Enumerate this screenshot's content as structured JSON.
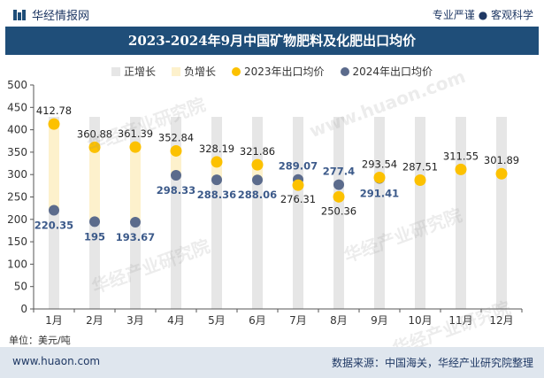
{
  "header": {
    "brand": "华经情报网",
    "tagline": "专业严谨 ● 客观科学"
  },
  "title": "2023-2024年9月中国矿物肥料及化肥出口均价",
  "legend": [
    {
      "label": "正增长",
      "color": "#e6e6e6"
    },
    {
      "label": "负增长",
      "color": "#fdf1cc"
    },
    {
      "label": "2023年出口均价",
      "color": "#fcc100"
    },
    {
      "label": "2024年出口均价",
      "color": "#5b6b8c"
    }
  ],
  "unit_label": "单位：美元/吨",
  "footer": {
    "site": "www.huaon.com",
    "source": "数据来源：中国海关，华经产业研究院整理"
  },
  "watermarks": [
    "华经产业研究院",
    "www.huaon.com"
  ],
  "colors": {
    "title_bg": "#1f4e79",
    "footer_bg": "#dfe6ee",
    "series_2023": "#fcc100",
    "series_2024": "#5b6b8c",
    "positive_bar": "#e6e6e6",
    "negative_bar": "#fdf1cc"
  },
  "chart_data": {
    "type": "scatter",
    "title": "2023-2024年9月中国矿物肥料及化肥出口均价",
    "categories": [
      "1月",
      "2月",
      "3月",
      "4月",
      "5月",
      "6月",
      "7月",
      "8月",
      "9月",
      "10月",
      "11月",
      "12月"
    ],
    "series": [
      {
        "name": "2023年出口均价",
        "values": [
          412.78,
          360.88,
          361.39,
          352.84,
          328.19,
          321.86,
          276.31,
          250.36,
          293.54,
          287.51,
          311.55,
          301.89
        ],
        "labels": [
          "412.78",
          "360.88",
          "361.39",
          "352.84",
          "328.19",
          "321.86",
          "276.31",
          "250.36",
          "293.54",
          "287.51",
          "311.55",
          "301.89"
        ]
      },
      {
        "name": "2024年出口均价",
        "values": [
          220.35,
          195,
          193.67,
          298.33,
          288.36,
          288.06,
          289.07,
          277.4,
          291.41,
          null,
          null,
          null
        ],
        "labels": [
          "220.35",
          "195",
          "193.67",
          "298.33",
          "288.36",
          "288.06",
          "289.07",
          "277.4",
          "291.41",
          "",
          "",
          ""
        ]
      }
    ],
    "ylim": [
      0,
      500
    ],
    "yticks": [
      "0",
      "50",
      "100",
      "150",
      "200",
      "250",
      "300",
      "350",
      "400",
      "450",
      "500"
    ],
    "xlabel": "",
    "ylabel": "",
    "unit": "美元/吨",
    "grid": false
  }
}
